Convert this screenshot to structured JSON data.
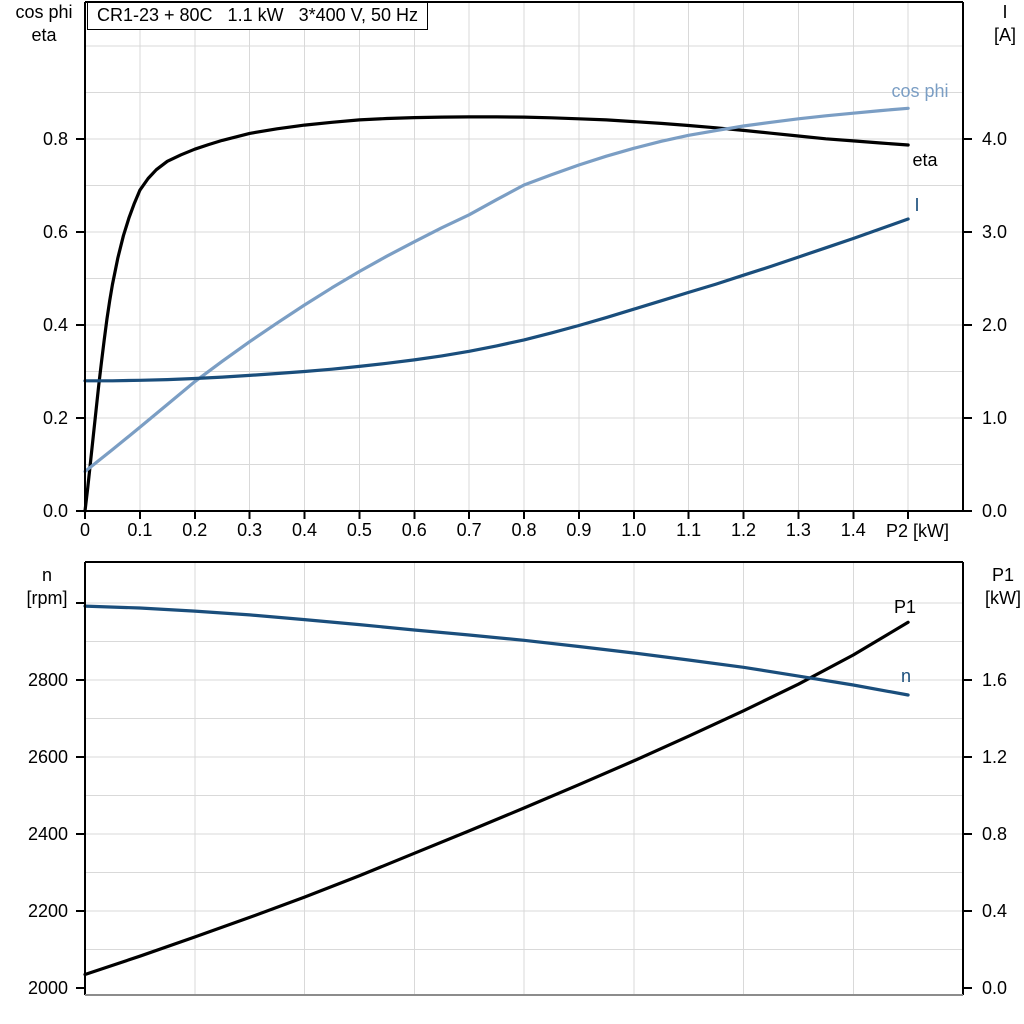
{
  "colors": {
    "black": "#000000",
    "dark_blue": "#1a4e7c",
    "light_blue": "#7b9ec4",
    "grid": "#d9d9d9",
    "frame_gray": "#8c8c8c"
  },
  "top_chart_labels": {
    "title": "CR1-23 + 80C   1.1 kW   3*400 V, 50 Hz",
    "left_title_1": "cos phi",
    "left_title_2": "eta",
    "right_title_1": "I",
    "right_title_2": "[A]",
    "x_unit": "P2 [kW]",
    "curve_cos_phi": "cos phi",
    "curve_eta": "eta",
    "curve_current": "I"
  },
  "bottom_chart_labels": {
    "left_title_1": "n",
    "left_title_2": "[rpm]",
    "right_title_1": "P1",
    "right_title_2": "[kW]",
    "curve_p1": "P1",
    "curve_n": "n"
  },
  "chart_data": [
    {
      "type": "line",
      "title": "CR1-23 + 80C   1.1 kW   3*400 V, 50 Hz",
      "xlabel": "P2 [kW]",
      "x_range": [
        0,
        1.6
      ],
      "x_tick_values": [
        0,
        0.1,
        0.2,
        0.3,
        0.4,
        0.5,
        0.6,
        0.7,
        0.8,
        0.9,
        1.0,
        1.1,
        1.2,
        1.3,
        1.4,
        1.5
      ],
      "x_tick_labels": [
        "0",
        "0.1",
        "0.2",
        "0.3",
        "0.4",
        "0.5",
        "0.6",
        "0.7",
        "0.8",
        "0.9",
        "1.0",
        "1.1",
        "1.2",
        "1.3",
        "1.4",
        ""
      ],
      "left_axis": {
        "label": "cos phi / eta",
        "range": [
          0,
          1.095
        ],
        "tick_values": [
          0,
          0.2,
          0.4,
          0.6,
          0.8
        ],
        "tick_labels": [
          "0.0",
          "0.2",
          "0.4",
          "0.6",
          "0.8"
        ]
      },
      "right_axis": {
        "label": "I [A]",
        "range": [
          0,
          5.47
        ],
        "tick_values": [
          0,
          1,
          2,
          3,
          4
        ],
        "tick_labels": [
          "0.0",
          "1.0",
          "2.0",
          "3.0",
          "4.0"
        ]
      },
      "grid": {
        "v_x": [
          0.1,
          0.2,
          0.3,
          0.4,
          0.5,
          0.6,
          0.7,
          0.8,
          0.9,
          1.0,
          1.1,
          1.2,
          1.3,
          1.4,
          1.5
        ],
        "h_left": [
          0.1,
          0.2,
          0.3,
          0.4,
          0.5,
          0.6,
          0.7,
          0.8,
          0.9,
          1.0
        ]
      },
      "legend_position": "inline-labels-right",
      "series": [
        {
          "name": "eta",
          "axis": "left",
          "color": "black",
          "x": [
            0,
            0.005,
            0.01,
            0.015,
            0.02,
            0.025,
            0.03,
            0.035,
            0.04,
            0.045,
            0.05,
            0.06,
            0.07,
            0.08,
            0.09,
            0.1,
            0.115,
            0.13,
            0.15,
            0.175,
            0.2,
            0.225,
            0.25,
            0.3,
            0.35,
            0.4,
            0.45,
            0.5,
            0.55,
            0.6,
            0.65,
            0.7,
            0.75,
            0.8,
            0.85,
            0.9,
            0.95,
            1,
            1.05,
            1.1,
            1.15,
            1.2,
            1.25,
            1.3,
            1.35,
            1.4,
            1.45,
            1.5
          ],
          "y": [
            0,
            0.05,
            0.105,
            0.16,
            0.215,
            0.27,
            0.32,
            0.368,
            0.413,
            0.452,
            0.487,
            0.545,
            0.592,
            0.63,
            0.662,
            0.69,
            0.715,
            0.734,
            0.752,
            0.766,
            0.778,
            0.788,
            0.797,
            0.812,
            0.822,
            0.83,
            0.836,
            0.841,
            0.844,
            0.846,
            0.847,
            0.8475,
            0.8475,
            0.847,
            0.8455,
            0.8435,
            0.841,
            0.8375,
            0.8335,
            0.829,
            0.824,
            0.8185,
            0.8125,
            0.8065,
            0.8005,
            0.796,
            0.7915,
            0.787
          ]
        },
        {
          "name": "cos phi",
          "axis": "left",
          "color": "light_blue",
          "x": [
            0,
            0.05,
            0.1,
            0.15,
            0.2,
            0.25,
            0.3,
            0.35,
            0.4,
            0.45,
            0.5,
            0.55,
            0.6,
            0.65,
            0.7,
            0.75,
            0.8,
            0.85,
            0.9,
            0.95,
            1,
            1.05,
            1.1,
            1.15,
            1.2,
            1.25,
            1.3,
            1.35,
            1.4,
            1.45,
            1.5
          ],
          "y": [
            0.085,
            0.132,
            0.18,
            0.229,
            0.278,
            0.322,
            0.364,
            0.404,
            0.443,
            0.48,
            0.515,
            0.548,
            0.579,
            0.609,
            0.637,
            0.6695,
            0.701,
            0.723,
            0.744,
            0.763,
            0.78,
            0.795,
            0.808,
            0.818,
            0.828,
            0.836,
            0.8435,
            0.85,
            0.8555,
            0.861,
            0.866
          ]
        },
        {
          "name": "I",
          "axis": "right",
          "color": "dark_blue",
          "x": [
            0,
            0.05,
            0.1,
            0.15,
            0.2,
            0.25,
            0.3,
            0.35,
            0.4,
            0.45,
            0.5,
            0.55,
            0.6,
            0.65,
            0.7,
            0.75,
            0.8,
            0.85,
            0.9,
            0.95,
            1,
            1.05,
            1.1,
            1.15,
            1.2,
            1.25,
            1.3,
            1.35,
            1.4,
            1.45,
            1.5
          ],
          "y": [
            1.4,
            1.4,
            1.405,
            1.413,
            1.425,
            1.44,
            1.458,
            1.478,
            1.5,
            1.525,
            1.555,
            1.588,
            1.625,
            1.668,
            1.717,
            1.775,
            1.84,
            1.915,
            1.995,
            2.08,
            2.17,
            2.26,
            2.35,
            2.44,
            2.535,
            2.63,
            2.73,
            2.83,
            2.93,
            3.035,
            3.14
          ]
        }
      ]
    },
    {
      "type": "line",
      "title": "",
      "xlabel": "",
      "x_range": [
        0,
        1.6
      ],
      "left_axis": {
        "label": "n [rpm]",
        "range": [
          1979,
          3107
        ],
        "tick_values": [
          2000,
          2200,
          2400,
          2600,
          2800,
          3000
        ],
        "tick_labels": [
          "2000",
          "2200",
          "2400",
          "2600",
          "2800",
          ""
        ]
      },
      "right_axis": {
        "label": "P1 [kW]",
        "range": [
          -0.04,
          2.21
        ],
        "tick_values": [
          0,
          0.4,
          0.8,
          1.2,
          1.6
        ],
        "tick_labels": [
          "0.0",
          "0.4",
          "0.8",
          "1.2",
          "1.6"
        ]
      },
      "grid": {
        "v_x": [
          0.2,
          0.4,
          0.6,
          0.8,
          1.0,
          1.2,
          1.4
        ],
        "h_left": [
          2100,
          2200,
          2300,
          2400,
          2500,
          2600,
          2700,
          2800,
          2900,
          3000
        ]
      },
      "legend_position": "inline-labels-right",
      "series": [
        {
          "name": "P1",
          "axis": "right",
          "color": "black",
          "x": [
            0,
            0.1,
            0.2,
            0.3,
            0.4,
            0.5,
            0.6,
            0.7,
            0.8,
            0.9,
            1,
            1.1,
            1.2,
            1.3,
            1.4,
            1.5
          ],
          "y": [
            0.07,
            0.165,
            0.265,
            0.367,
            0.472,
            0.583,
            0.7,
            0.816,
            0.935,
            1.056,
            1.18,
            1.308,
            1.44,
            1.578,
            1.73,
            1.9
          ]
        },
        {
          "name": "n",
          "axis": "left",
          "color": "dark_blue",
          "x": [
            0,
            0.1,
            0.2,
            0.3,
            0.4,
            0.5,
            0.6,
            0.7,
            0.8,
            0.9,
            1,
            1.1,
            1.2,
            1.3,
            1.4,
            1.5
          ],
          "y": [
            2992,
            2987,
            2979,
            2969,
            2957,
            2944,
            2930,
            2917,
            2903,
            2887,
            2870,
            2852,
            2833,
            2810,
            2787,
            2761
          ]
        }
      ]
    }
  ]
}
